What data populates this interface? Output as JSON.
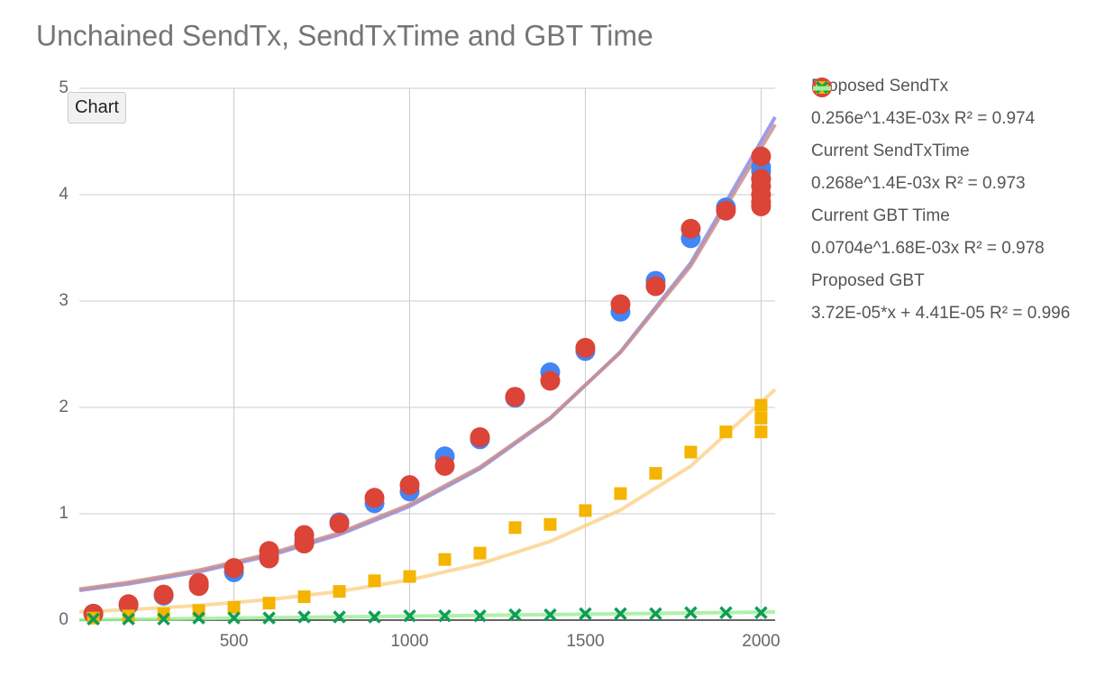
{
  "overlay_button": "Chart",
  "chart_data": {
    "type": "scatter",
    "title": "Unchained SendTx, SendTxTime and GBT Time",
    "xlim": [
      60,
      2040
    ],
    "ylim": [
      0,
      5
    ],
    "xticks": [
      500,
      1000,
      1500,
      2000
    ],
    "yticks": [
      0,
      1,
      2,
      3,
      4,
      5
    ],
    "grid": true,
    "series": [
      {
        "name": "0.256e^1.43E-03x R² = 0.974",
        "color": "#8c8ce8",
        "marker": "line",
        "x": [
          60,
          200,
          400,
          600,
          800,
          1000,
          1200,
          1400,
          1600,
          1800,
          2040
        ],
        "values": [
          0.279,
          0.341,
          0.454,
          0.604,
          0.804,
          1.07,
          1.424,
          1.895,
          2.523,
          3.358,
          4.73
        ]
      },
      {
        "name": "0.268e^1.4E-03x R² = 0.973",
        "color": "#c98f8c",
        "marker": "line",
        "x": [
          60,
          200,
          400,
          600,
          800,
          1000,
          1200,
          1400,
          1600,
          1800,
          2040
        ],
        "values": [
          0.291,
          0.355,
          0.469,
          0.621,
          0.821,
          1.087,
          1.438,
          1.903,
          2.517,
          3.331,
          4.66
        ]
      },
      {
        "name": "0.0704e^1.68E-03x R² = 0.978",
        "color": "#fbd38f",
        "marker": "line",
        "x": [
          60,
          200,
          400,
          600,
          800,
          1000,
          1200,
          1400,
          1600,
          1800,
          2040
        ],
        "values": [
          0.078,
          0.098,
          0.138,
          0.193,
          0.27,
          0.378,
          0.529,
          0.74,
          1.035,
          1.448,
          2.168
        ]
      },
      {
        "name": "3.72E-05*x + 4.41E-05 R² = 0.996",
        "color": "#9ef09a",
        "marker": "line",
        "x": [
          60,
          2040
        ],
        "values": [
          0.0023,
          0.0759
        ]
      },
      {
        "name": "Proposed SendTx",
        "color": "#4285f4",
        "marker": "circle",
        "x": [
          100,
          200,
          300,
          400,
          500,
          600,
          700,
          800,
          900,
          1000,
          1100,
          1200,
          1300,
          1400,
          1500,
          1600,
          1700,
          1800,
          1900,
          2000,
          2000,
          2000
        ],
        "values": [
          0.06,
          0.14,
          0.23,
          0.33,
          0.45,
          0.6,
          0.75,
          0.92,
          1.1,
          1.21,
          1.54,
          1.7,
          2.09,
          2.33,
          2.53,
          2.9,
          3.19,
          3.59,
          3.88,
          4.22,
          4.15,
          4.26
        ]
      },
      {
        "name": "Current SendTxTime",
        "color": "#db4437",
        "marker": "circle",
        "x": [
          100,
          200,
          300,
          400,
          400,
          500,
          600,
          600,
          700,
          700,
          800,
          900,
          1000,
          1100,
          1200,
          1300,
          1400,
          1500,
          1600,
          1700,
          1800,
          1900,
          2000,
          2000,
          2000,
          2000,
          2000,
          2000
        ],
        "values": [
          0.06,
          0.15,
          0.24,
          0.35,
          0.32,
          0.49,
          0.65,
          0.58,
          0.8,
          0.72,
          0.91,
          1.15,
          1.27,
          1.45,
          1.72,
          2.1,
          2.25,
          2.56,
          2.97,
          3.14,
          3.68,
          3.85,
          4.36,
          4.15,
          4.08,
          4.0,
          3.93,
          3.89
        ]
      },
      {
        "name": "Current GBT Time",
        "color": "#f4b400",
        "marker": "square",
        "x": [
          100,
          200,
          300,
          400,
          500,
          600,
          700,
          800,
          900,
          1000,
          1100,
          1200,
          1300,
          1400,
          1500,
          1600,
          1700,
          1800,
          1900,
          2000,
          2000,
          2000
        ],
        "values": [
          0.02,
          0.04,
          0.06,
          0.09,
          0.12,
          0.16,
          0.22,
          0.27,
          0.37,
          0.41,
          0.57,
          0.63,
          0.87,
          0.9,
          1.03,
          1.19,
          1.38,
          1.58,
          1.77,
          2.02,
          1.9,
          1.77
        ]
      },
      {
        "name": "Proposed GBT",
        "color": "#0f9d58",
        "marker": "x",
        "x": [
          100,
          200,
          300,
          400,
          500,
          600,
          700,
          800,
          900,
          1000,
          1100,
          1200,
          1300,
          1400,
          1500,
          1600,
          1700,
          1800,
          1900,
          2000
        ],
        "values": [
          0.01,
          0.01,
          0.01,
          0.02,
          0.02,
          0.02,
          0.03,
          0.03,
          0.03,
          0.04,
          0.04,
          0.04,
          0.05,
          0.05,
          0.06,
          0.06,
          0.06,
          0.07,
          0.07,
          0.07
        ]
      }
    ],
    "legend_order": [
      4,
      0,
      5,
      1,
      6,
      2,
      7,
      3
    ]
  }
}
